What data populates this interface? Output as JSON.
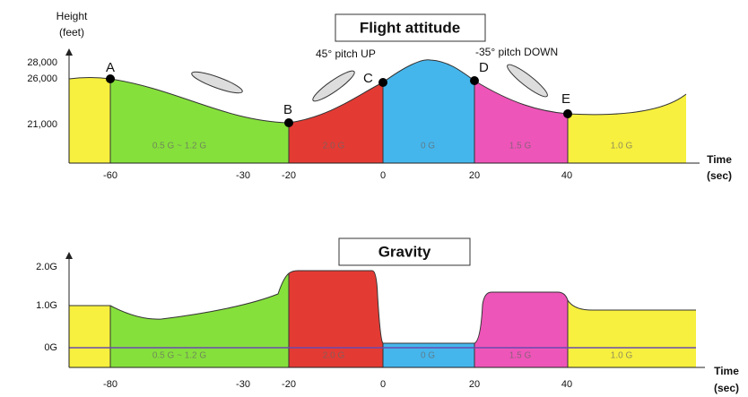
{
  "flight_attitude": {
    "title": "Flight attitude",
    "y_axis_label": [
      "Height",
      "(feet)"
    ],
    "y_ticks": [
      "28,000",
      "26,000",
      "21,000"
    ],
    "x_ticks": [
      "-60",
      "-30",
      "-20",
      "0",
      "20",
      "40"
    ],
    "x_axis_label": [
      "Time",
      "(sec)"
    ],
    "points": [
      "A",
      "B",
      "C",
      "D",
      "E"
    ],
    "annotations": [
      "45° pitch UP",
      "-35° pitch DOWN"
    ],
    "phases": [
      "0.5 G ~ 1.2 G",
      "2.0 G",
      "0 G",
      "1.5 G",
      "1.0 G"
    ]
  },
  "gravity": {
    "title": "Gravity",
    "y_ticks": [
      "2.0G",
      "1.0G",
      "0G"
    ],
    "x_ticks": [
      "-80",
      "-30",
      "-20",
      "0",
      "20",
      "40"
    ],
    "x_axis_label": [
      "Time",
      "(sec)"
    ],
    "phases": [
      "0.5 G ~ 1.2 G",
      "2.0 G",
      "0 G",
      "1.5 G",
      "1.0 G"
    ]
  }
}
